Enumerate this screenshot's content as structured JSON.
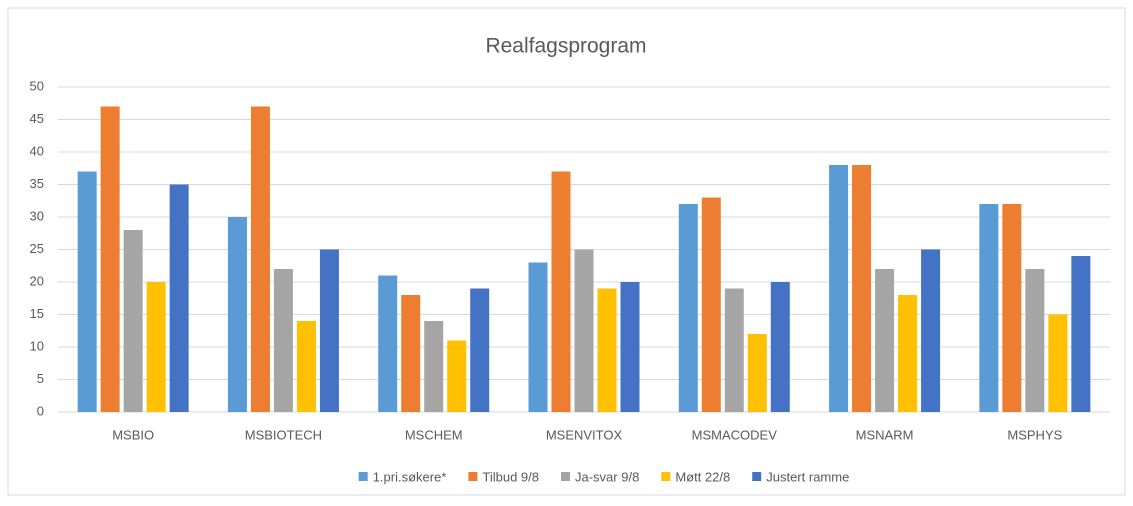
{
  "chart_data": {
    "type": "bar",
    "title": "Realfagsprogram",
    "categories": [
      "MSBIO",
      "MSBIOTECH",
      "MSCHEM",
      "MSENVITOX",
      "MSMACODEV",
      "MSNARM",
      "MSPHYS"
    ],
    "series": [
      {
        "name": "1.pri.søkere*",
        "color": "#5b9bd5",
        "values": [
          37,
          30,
          21,
          23,
          32,
          38,
          32
        ]
      },
      {
        "name": "Tilbud 9/8",
        "color": "#ed7d31",
        "values": [
          47,
          47,
          18,
          37,
          33,
          38,
          32
        ]
      },
      {
        "name": "Ja-svar 9/8",
        "color": "#a5a5a5",
        "values": [
          28,
          22,
          14,
          25,
          19,
          22,
          22
        ]
      },
      {
        "name": "Møtt 22/8",
        "color": "#ffc000",
        "values": [
          20,
          14,
          11,
          19,
          12,
          18,
          15
        ]
      },
      {
        "name": "Justert ramme",
        "color": "#4472c4",
        "values": [
          35,
          25,
          19,
          20,
          20,
          25,
          24
        ]
      }
    ],
    "ylim": [
      0,
      50
    ],
    "yticks": [
      0,
      5,
      10,
      15,
      20,
      25,
      30,
      35,
      40,
      45,
      50
    ],
    "grid": true,
    "legend": "bottom"
  }
}
